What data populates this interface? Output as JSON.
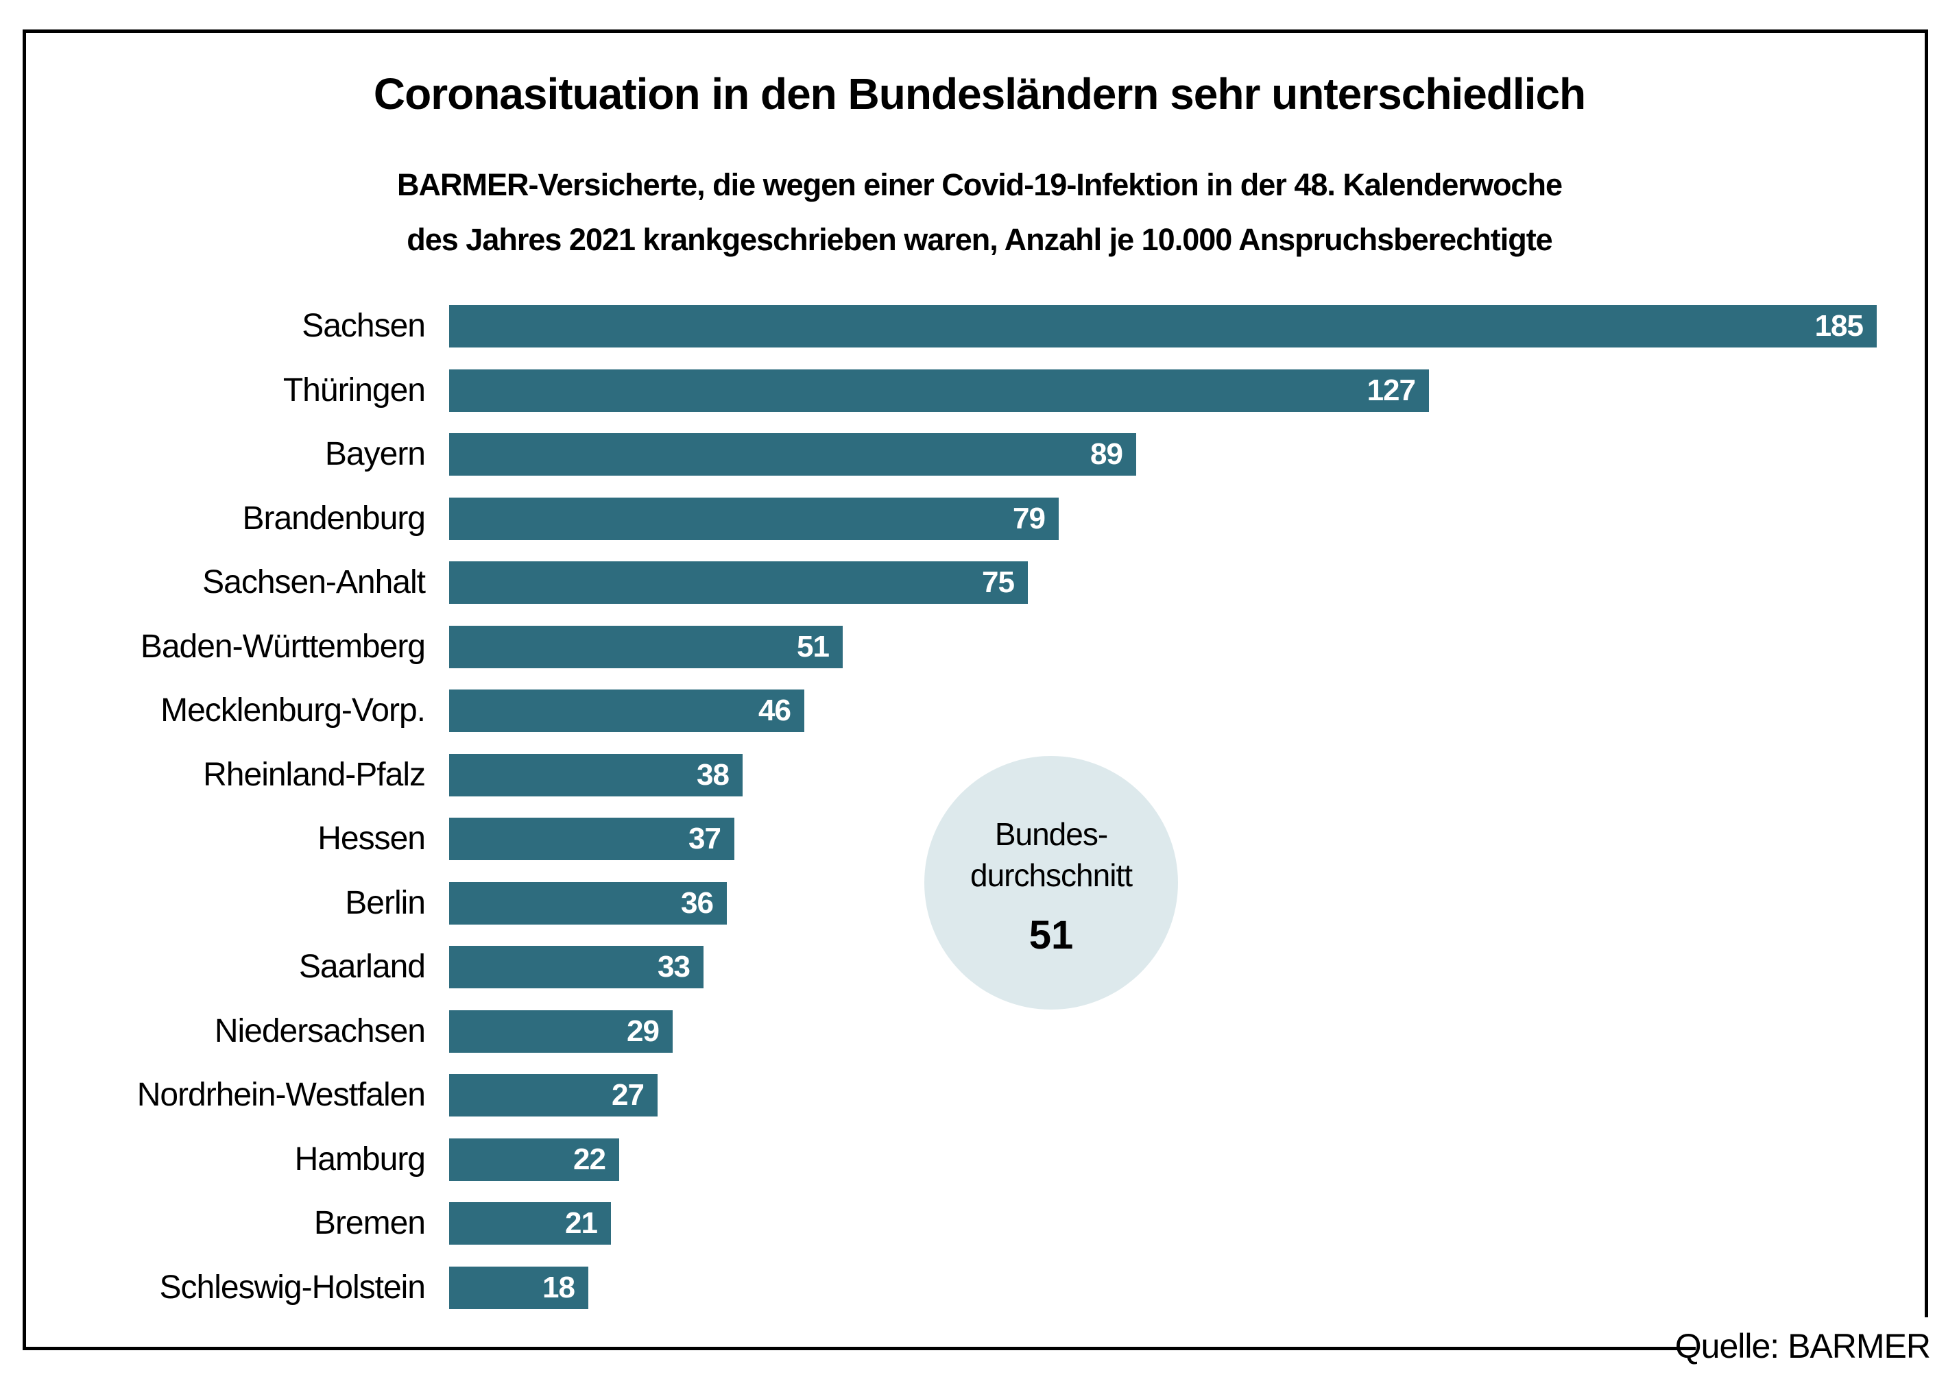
{
  "title": "Coronasituation in den Bundesländern sehr unterschiedlich",
  "subtitle": {
    "line1": "BARMER-Versicherte, die wegen einer Covid-19-Infektion in der 48. Kalenderwoche",
    "line2": "des Jahres 2021 krankgeschrieben waren, Anzahl je 10.000 Anspruchsberechtigte"
  },
  "average_badge": {
    "line1": "Bundes-",
    "line2": "durchschnitt",
    "value": "51"
  },
  "source": {
    "text": "Quelle: BARMER"
  },
  "colors": {
    "bar": "#2e6c7e",
    "value_label": "#ffffff",
    "average_circle": "#dde9ec",
    "text": "#000000",
    "frame_border": "#000000",
    "background": "#ffffff"
  },
  "chart_data": {
    "type": "bar",
    "orientation": "horizontal",
    "title": "Coronasituation in den Bundesländern sehr unterschiedlich",
    "subtitle": "BARMER-Versicherte, die wegen einer Covid-19-Infektion in der 48. Kalenderwoche des Jahres 2021 krankgeschrieben waren, Anzahl je 10.000 Anspruchsberechtigte",
    "categories": [
      "Sachsen",
      "Thüringen",
      "Bayern",
      "Brandenburg",
      "Sachsen-Anhalt",
      "Baden-Württemberg",
      "Mecklenburg-Vorp.",
      "Rheinland-Pfalz",
      "Hessen",
      "Berlin",
      "Saarland",
      "Niedersachsen",
      "Nordrhein-Westfalen",
      "Hamburg",
      "Bremen",
      "Schleswig-Holstein"
    ],
    "values": [
      185,
      127,
      89,
      79,
      75,
      51,
      46,
      38,
      37,
      36,
      33,
      29,
      27,
      22,
      21,
      18
    ],
    "xlim": [
      0,
      185
    ],
    "value_labels_position": "inside-end",
    "grid": false,
    "legend": false,
    "annotation": {
      "label": "Bundesdurchschnitt",
      "value": 51
    },
    "source": "Quelle: BARMER"
  }
}
